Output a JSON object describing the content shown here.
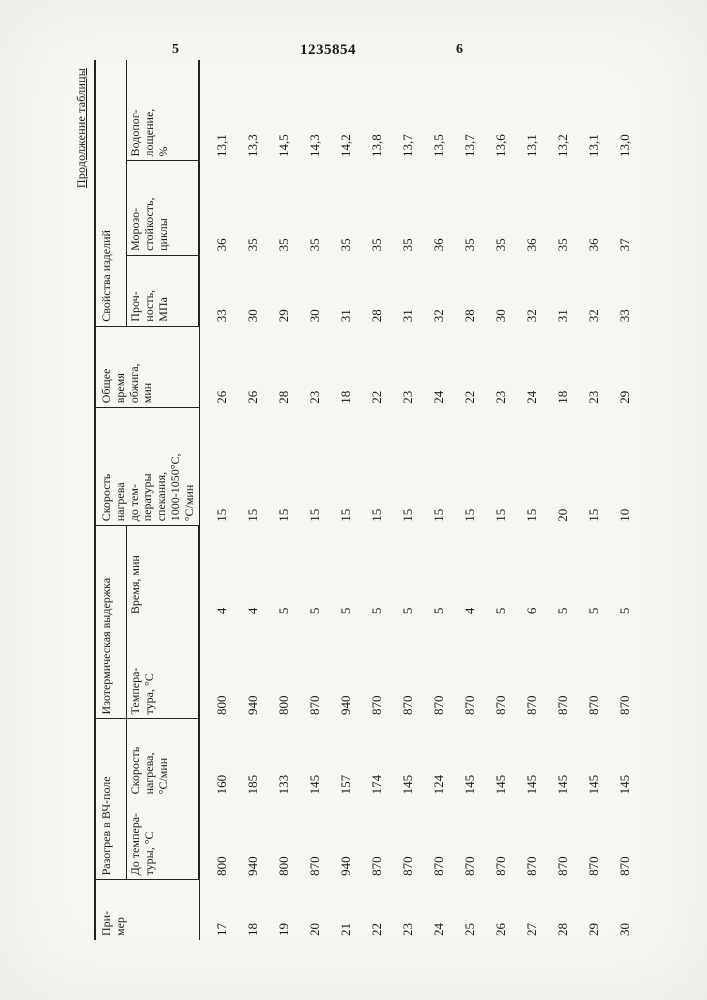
{
  "top": {
    "mark5": "5",
    "docnum": "1235854",
    "mark6": "6"
  },
  "caption": "Продолжение таблицы",
  "headers": {
    "primer": "При-\nмер",
    "group_razogrev": "Разогрев в ВЧ-поле",
    "group_iso": "Изотермическая выдержка",
    "skorost_nagr": "Скорость\nнагрева\nдо тем-\nпературы\nспекания,\n1000-1050°С,\n°С/мин",
    "obshee": "Общее\nвремя\nобжига,\nмин",
    "group_svoystva": "Свойства изделий",
    "do_temp": "До темпера-\nтуры, °С",
    "skorost2": "Скорость\nнагрева,\n°С/мин",
    "iso_temp": "Темпера-\nтура, °С",
    "iso_time": "Время, мин",
    "proch": "Проч-\nность,\nМПа",
    "moroz": "Морозо-\nстойкость,\nциклы",
    "vodo": "Водопог-\nлощение,\n%"
  },
  "rows": [
    {
      "n": "17",
      "t1": "800",
      "s1": "160",
      "t2": "800",
      "v": "4",
      "sn": "15",
      "ob": "26",
      "p": "33",
      "m": "36",
      "w": "13,1"
    },
    {
      "n": "18",
      "t1": "940",
      "s1": "185",
      "t2": "940",
      "v": "4",
      "sn": "15",
      "ob": "26",
      "p": "30",
      "m": "35",
      "w": "13,3"
    },
    {
      "n": "19",
      "t1": "800",
      "s1": "133",
      "t2": "800",
      "v": "5",
      "sn": "15",
      "ob": "28",
      "p": "29",
      "m": "35",
      "w": "14,5"
    },
    {
      "n": "20",
      "t1": "870",
      "s1": "145",
      "t2": "870",
      "v": "5",
      "sn": "15",
      "ob": "23",
      "p": "30",
      "m": "35",
      "w": "14,3"
    },
    {
      "n": "21",
      "t1": "940",
      "s1": "157",
      "t2": "940",
      "v": "5",
      "sn": "15",
      "ob": "18",
      "p": "31",
      "m": "35",
      "w": "14,2"
    },
    {
      "n": "22",
      "t1": "870",
      "s1": "174",
      "t2": "870",
      "v": "5",
      "sn": "15",
      "ob": "22",
      "p": "28",
      "m": "35",
      "w": "13,8"
    },
    {
      "n": "23",
      "t1": "870",
      "s1": "145",
      "t2": "870",
      "v": "5",
      "sn": "15",
      "ob": "23",
      "p": "31",
      "m": "35",
      "w": "13,7"
    },
    {
      "n": "24",
      "t1": "870",
      "s1": "124",
      "t2": "870",
      "v": "5",
      "sn": "15",
      "ob": "24",
      "p": "32",
      "m": "36",
      "w": "13,5"
    },
    {
      "n": "25",
      "t1": "870",
      "s1": "145",
      "t2": "870",
      "v": "4",
      "sn": "15",
      "ob": "22",
      "p": "28",
      "m": "35",
      "w": "13,7"
    },
    {
      "n": "26",
      "t1": "870",
      "s1": "145",
      "t2": "870",
      "v": "5",
      "sn": "15",
      "ob": "23",
      "p": "30",
      "m": "35",
      "w": "13,6"
    },
    {
      "n": "27",
      "t1": "870",
      "s1": "145",
      "t2": "870",
      "v": "6",
      "sn": "15",
      "ob": "24",
      "p": "32",
      "m": "36",
      "w": "13,1"
    },
    {
      "n": "28",
      "t1": "870",
      "s1": "145",
      "t2": "870",
      "v": "5",
      "sn": "20",
      "ob": "18",
      "p": "31",
      "m": "35",
      "w": "13,2"
    },
    {
      "n": "29",
      "t1": "870",
      "s1": "145",
      "t2": "870",
      "v": "5",
      "sn": "15",
      "ob": "23",
      "p": "32",
      "m": "36",
      "w": "13,1"
    },
    {
      "n": "30",
      "t1": "870",
      "s1": "145",
      "t2": "870",
      "v": "5",
      "sn": "10",
      "ob": "29",
      "p": "33",
      "m": "37",
      "w": "13,0"
    }
  ]
}
